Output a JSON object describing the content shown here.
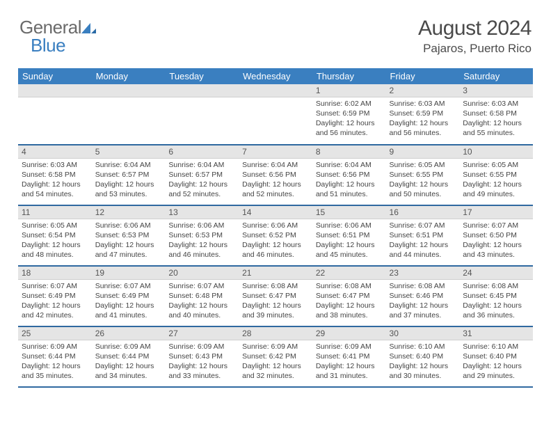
{
  "logo": {
    "text1": "General",
    "text2": "Blue"
  },
  "title": "August 2024",
  "location": "Pajaros, Puerto Rico",
  "header_bg": "#3a7fc0",
  "border_color": "#2f69a0",
  "day_head_bg": "#e5e5e5",
  "day_names": [
    "Sunday",
    "Monday",
    "Tuesday",
    "Wednesday",
    "Thursday",
    "Friday",
    "Saturday"
  ],
  "weeks": [
    [
      null,
      null,
      null,
      null,
      {
        "n": "1",
        "sr": "6:02 AM",
        "ss": "6:59 PM",
        "dh": "12",
        "dm": "56"
      },
      {
        "n": "2",
        "sr": "6:03 AM",
        "ss": "6:59 PM",
        "dh": "12",
        "dm": "56"
      },
      {
        "n": "3",
        "sr": "6:03 AM",
        "ss": "6:58 PM",
        "dh": "12",
        "dm": "55"
      }
    ],
    [
      {
        "n": "4",
        "sr": "6:03 AM",
        "ss": "6:58 PM",
        "dh": "12",
        "dm": "54"
      },
      {
        "n": "5",
        "sr": "6:04 AM",
        "ss": "6:57 PM",
        "dh": "12",
        "dm": "53"
      },
      {
        "n": "6",
        "sr": "6:04 AM",
        "ss": "6:57 PM",
        "dh": "12",
        "dm": "52"
      },
      {
        "n": "7",
        "sr": "6:04 AM",
        "ss": "6:56 PM",
        "dh": "12",
        "dm": "52"
      },
      {
        "n": "8",
        "sr": "6:04 AM",
        "ss": "6:56 PM",
        "dh": "12",
        "dm": "51"
      },
      {
        "n": "9",
        "sr": "6:05 AM",
        "ss": "6:55 PM",
        "dh": "12",
        "dm": "50"
      },
      {
        "n": "10",
        "sr": "6:05 AM",
        "ss": "6:55 PM",
        "dh": "12",
        "dm": "49"
      }
    ],
    [
      {
        "n": "11",
        "sr": "6:05 AM",
        "ss": "6:54 PM",
        "dh": "12",
        "dm": "48"
      },
      {
        "n": "12",
        "sr": "6:06 AM",
        "ss": "6:53 PM",
        "dh": "12",
        "dm": "47"
      },
      {
        "n": "13",
        "sr": "6:06 AM",
        "ss": "6:53 PM",
        "dh": "12",
        "dm": "46"
      },
      {
        "n": "14",
        "sr": "6:06 AM",
        "ss": "6:52 PM",
        "dh": "12",
        "dm": "46"
      },
      {
        "n": "15",
        "sr": "6:06 AM",
        "ss": "6:51 PM",
        "dh": "12",
        "dm": "45"
      },
      {
        "n": "16",
        "sr": "6:07 AM",
        "ss": "6:51 PM",
        "dh": "12",
        "dm": "44"
      },
      {
        "n": "17",
        "sr": "6:07 AM",
        "ss": "6:50 PM",
        "dh": "12",
        "dm": "43"
      }
    ],
    [
      {
        "n": "18",
        "sr": "6:07 AM",
        "ss": "6:49 PM",
        "dh": "12",
        "dm": "42"
      },
      {
        "n": "19",
        "sr": "6:07 AM",
        "ss": "6:49 PM",
        "dh": "12",
        "dm": "41"
      },
      {
        "n": "20",
        "sr": "6:07 AM",
        "ss": "6:48 PM",
        "dh": "12",
        "dm": "40"
      },
      {
        "n": "21",
        "sr": "6:08 AM",
        "ss": "6:47 PM",
        "dh": "12",
        "dm": "39"
      },
      {
        "n": "22",
        "sr": "6:08 AM",
        "ss": "6:47 PM",
        "dh": "12",
        "dm": "38"
      },
      {
        "n": "23",
        "sr": "6:08 AM",
        "ss": "6:46 PM",
        "dh": "12",
        "dm": "37"
      },
      {
        "n": "24",
        "sr": "6:08 AM",
        "ss": "6:45 PM",
        "dh": "12",
        "dm": "36"
      }
    ],
    [
      {
        "n": "25",
        "sr": "6:09 AM",
        "ss": "6:44 PM",
        "dh": "12",
        "dm": "35"
      },
      {
        "n": "26",
        "sr": "6:09 AM",
        "ss": "6:44 PM",
        "dh": "12",
        "dm": "34"
      },
      {
        "n": "27",
        "sr": "6:09 AM",
        "ss": "6:43 PM",
        "dh": "12",
        "dm": "33"
      },
      {
        "n": "28",
        "sr": "6:09 AM",
        "ss": "6:42 PM",
        "dh": "12",
        "dm": "32"
      },
      {
        "n": "29",
        "sr": "6:09 AM",
        "ss": "6:41 PM",
        "dh": "12",
        "dm": "31"
      },
      {
        "n": "30",
        "sr": "6:10 AM",
        "ss": "6:40 PM",
        "dh": "12",
        "dm": "30"
      },
      {
        "n": "31",
        "sr": "6:10 AM",
        "ss": "6:40 PM",
        "dh": "12",
        "dm": "29"
      }
    ]
  ],
  "labels": {
    "sunrise": "Sunrise:",
    "sunset": "Sunset:",
    "daylight_pre": "Daylight:",
    "hours_word": "hours",
    "and_word": "and",
    "minutes_word": "minutes."
  }
}
